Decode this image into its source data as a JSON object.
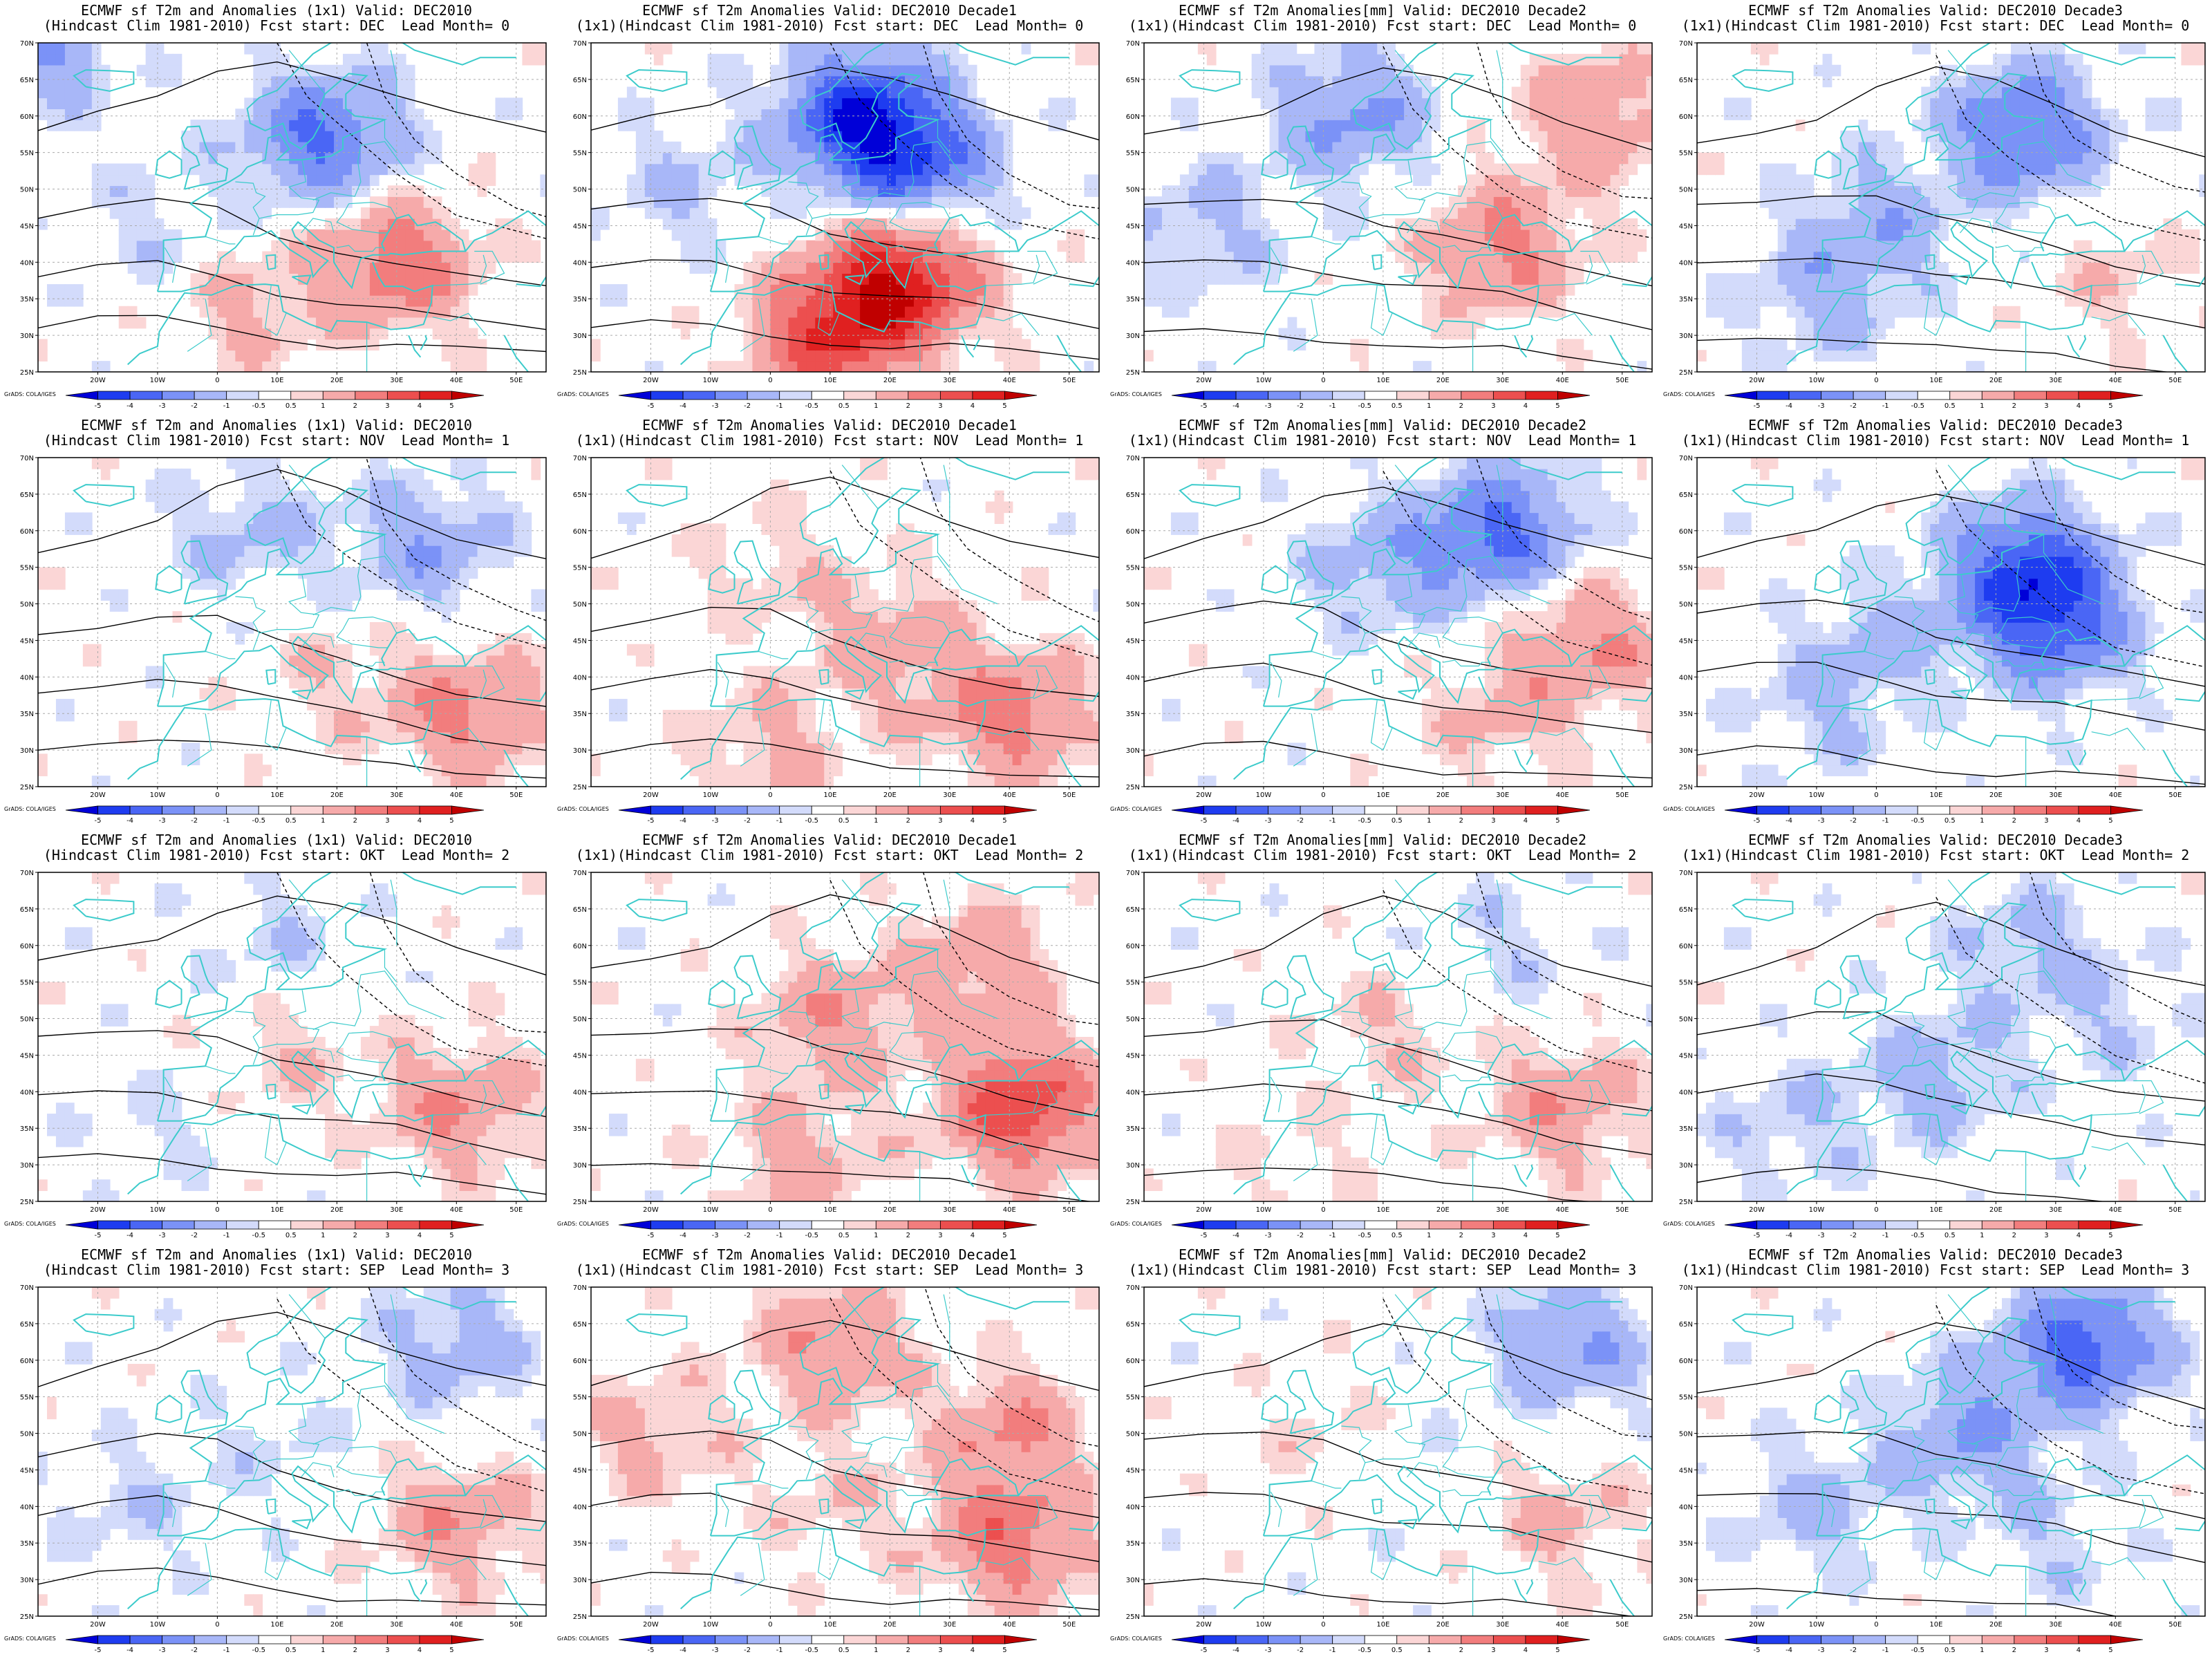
{
  "panels": [
    {
      "title1": "ECMWF sf T2m and Anomalies (1x1) Valid: DEC2010",
      "title2": "(Hindcast Clim 1981-2010) Fcst start: DEC  Lead Month= 0",
      "pattern": [
        [
          70,
          -30,
          -2.2
        ],
        [
          57,
          18,
          -3.2
        ],
        [
          40,
          30,
          2.8
        ],
        [
          34,
          5,
          1.2
        ],
        [
          45,
          -10,
          -0.8
        ]
      ]
    },
    {
      "title1": "ECMWF sf T2m Anomalies Valid: DEC2010 Decade1",
      "title2": "(1x1)(Hindcast Clim 1981-2010) Fcst start: DEC  Lead Month= 0",
      "pattern": [
        [
          60,
          15,
          -4.5
        ],
        [
          53,
          25,
          -3
        ],
        [
          38,
          22,
          4.5
        ],
        [
          30,
          10,
          3.5
        ],
        [
          50,
          -15,
          -1
        ]
      ]
    },
    {
      "title1": "ECMWF sf T2m Anomalies[mm] Valid: DEC2010 Decade2",
      "title2": "(1x1)(Hindcast Clim 1981-2010) Fcst start: DEC  Lead Month= 0",
      "pattern": [
        [
          60,
          5,
          -2.2
        ],
        [
          45,
          -20,
          -1.2
        ],
        [
          42,
          30,
          2.2
        ],
        [
          60,
          45,
          1.8
        ]
      ]
    },
    {
      "title1": "ECMWF sf T2m Anomalies Valid: DEC2010 Decade3",
      "title2": "(1x1)(Hindcast Clim 1981-2010) Fcst start: DEC  Lead Month= 0",
      "pattern": [
        [
          58,
          25,
          -3.2
        ],
        [
          45,
          0,
          -1.6
        ],
        [
          35,
          -10,
          -1.2
        ],
        [
          38,
          40,
          0.8
        ]
      ]
    },
    {
      "title1": "ECMWF sf T2m and Anomalies (1x1) Valid: DEC2010",
      "title2": "(Hindcast Clim 1981-2010) Fcst start: NOV  Lead Month= 1",
      "pattern": [
        [
          58,
          35,
          -1.8
        ],
        [
          60,
          5,
          -1.2
        ],
        [
          35,
          42,
          2.2
        ],
        [
          40,
          20,
          0.8
        ]
      ]
    },
    {
      "title1": "ECMWF sf T2m Anomalies Valid: DEC2010 Decade1",
      "title2": "(1x1)(Hindcast Clim 1981-2010) Fcst start: NOV  Lead Month= 1",
      "pattern": [
        [
          45,
          20,
          1.5
        ],
        [
          35,
          40,
          2.5
        ],
        [
          55,
          0,
          0.8
        ],
        [
          30,
          0,
          1.2
        ]
      ]
    },
    {
      "title1": "ECMWF sf T2m Anomalies[mm] Valid: DEC2010 Decade2",
      "title2": "(1x1)(Hindcast Clim 1981-2010) Fcst start: NOV  Lead Month= 1",
      "pattern": [
        [
          60,
          30,
          -3.2
        ],
        [
          55,
          10,
          -1.5
        ],
        [
          45,
          45,
          2
        ],
        [
          35,
          30,
          1.2
        ]
      ]
    },
    {
      "title1": "ECMWF sf T2m Anomalies Valid: DEC2010 Decade3",
      "title2": "(1x1)(Hindcast Clim 1981-2010) Fcst start: NOV  Lead Month= 1",
      "pattern": [
        [
          55,
          25,
          -3.5
        ],
        [
          47,
          30,
          -3
        ],
        [
          45,
          0,
          -1.2
        ],
        [
          35,
          -10,
          -0.9
        ]
      ]
    },
    {
      "title1": "ECMWF sf T2m and Anomalies (1x1) Valid: DEC2010",
      "title2": "(Hindcast Clim 1981-2010) Fcst start: OKT  Lead Month= 2",
      "pattern": [
        [
          38,
          40,
          2
        ],
        [
          45,
          10,
          0.9
        ],
        [
          60,
          10,
          -0.8
        ],
        [
          35,
          -10,
          -0.6
        ]
      ]
    },
    {
      "title1": "ECMWF sf T2m Anomalies Valid: DEC2010 Decade1",
      "title2": "(1x1)(Hindcast Clim 1981-2010) Fcst start: OKT  Lead Month= 2",
      "pattern": [
        [
          38,
          42,
          3.8
        ],
        [
          50,
          10,
          1.8
        ],
        [
          58,
          35,
          1.6
        ],
        [
          30,
          5,
          1.5
        ]
      ]
    },
    {
      "title1": "ECMWF sf T2m Anomalies[mm] Valid: DEC2010 Decade2",
      "title2": "(1x1)(Hindcast Clim 1981-2010) Fcst start: OKT  Lead Month= 2",
      "pattern": [
        [
          38,
          40,
          1.8
        ],
        [
          48,
          10,
          0.9
        ],
        [
          60,
          30,
          -0.8
        ],
        [
          30,
          -5,
          0.6
        ]
      ]
    },
    {
      "title1": "ECMWF sf T2m Anomalies Valid: DEC2010 Decade3",
      "title2": "(1x1)(Hindcast Clim 1981-2010) Fcst start: OKT  Lead Month= 2",
      "pattern": [
        [
          42,
          10,
          -1.5
        ],
        [
          60,
          25,
          -1.2
        ],
        [
          35,
          -15,
          -1
        ],
        [
          50,
          40,
          -0.8
        ]
      ]
    },
    {
      "title1": "ECMWF sf T2m and Anomalies (1x1) Valid: DEC2010",
      "title2": "(Hindcast Clim 1981-2010) Fcst start: SEP  Lead Month= 3",
      "pattern": [
        [
          38,
          40,
          1.8
        ],
        [
          62,
          40,
          -1.5
        ],
        [
          40,
          -15,
          -0.8
        ],
        [
          48,
          10,
          -0.6
        ]
      ]
    },
    {
      "title1": "ECMWF sf T2m Anomalies Valid: DEC2010 Decade1",
      "title2": "(1x1)(Hindcast Clim 1981-2010) Fcst start: SEP  Lead Month= 3",
      "pattern": [
        [
          62,
          10,
          2
        ],
        [
          50,
          40,
          2
        ],
        [
          35,
          40,
          2.5
        ],
        [
          50,
          -20,
          1.2
        ],
        [
          40,
          10,
          0.8
        ]
      ]
    },
    {
      "title1": "ECMWF sf T2m Anomalies[mm] Valid: DEC2010 Decade2",
      "title2": "(1x1)(Hindcast Clim 1981-2010) Fcst start: SEP  Lead Month= 3",
      "pattern": [
        [
          62,
          42,
          -2
        ],
        [
          38,
          40,
          1.2
        ],
        [
          50,
          0,
          0.6
        ],
        [
          45,
          15,
          -0.4
        ]
      ]
    },
    {
      "title1": "ECMWF sf T2m Anomalies Valid: DEC2010 Decade3",
      "title2": "(1x1)(Hindcast Clim 1981-2010) Fcst start: SEP  Lead Month= 3",
      "pattern": [
        [
          62,
          35,
          -3.5
        ],
        [
          50,
          15,
          -2
        ],
        [
          40,
          -10,
          -1.3
        ],
        [
          35,
          30,
          -0.8
        ]
      ]
    }
  ],
  "axes": {
    "lat_ticks": [
      "70N",
      "65N",
      "60N",
      "55N",
      "50N",
      "45N",
      "40N",
      "35N",
      "30N",
      "25N"
    ],
    "lon_ticks": [
      "20W",
      "10W",
      "0",
      "10E",
      "20E",
      "30E",
      "40E",
      "50E"
    ],
    "lat_range": [
      25,
      70
    ],
    "lon_range": [
      -30,
      55
    ]
  },
  "colorbar": {
    "labels": [
      "-5",
      "-4",
      "-3",
      "-2",
      "-1",
      "-0.5",
      "0.5",
      "1",
      "2",
      "3",
      "4",
      "5"
    ],
    "colors": [
      "#0000d8",
      "#1e3cf0",
      "#4a66f5",
      "#7b92f7",
      "#a8b7f8",
      "#d3dbfb",
      "#ffffff",
      "#fbd6d6",
      "#f6aaaa",
      "#f27d7d",
      "#ec4f4f",
      "#e02020",
      "#c00000"
    ]
  },
  "credit": "GrADS: COLA/IGES",
  "colors": {
    "coast": "#3ccbcb",
    "contour": "#000000",
    "grid": "#aaaaaa"
  }
}
